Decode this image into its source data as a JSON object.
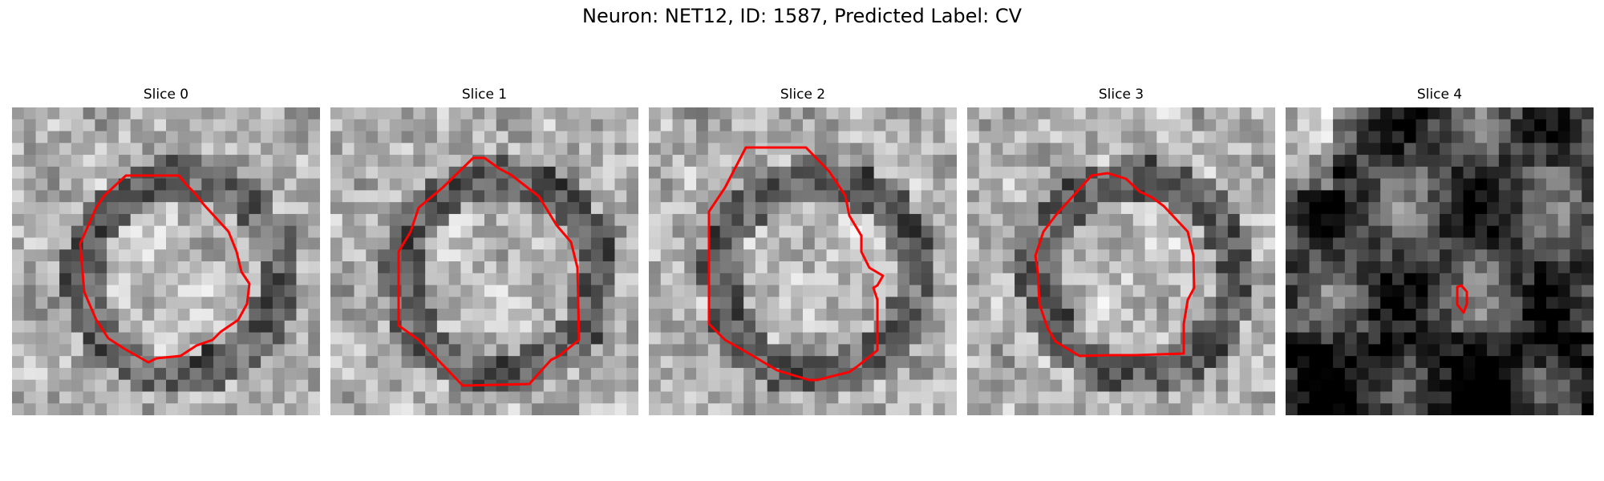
{
  "figure": {
    "title": "Neuron: NET12, ID: 1587, Predicted Label: CV"
  },
  "outline_color": "#ff0000",
  "panels": [
    {
      "title": "Slice 0",
      "seed": 11,
      "contrast": "mid",
      "ring_dark": true,
      "has_outline": true
    },
    {
      "title": "Slice 1",
      "seed": 23,
      "contrast": "mid",
      "ring_dark": true,
      "has_outline": true
    },
    {
      "title": "Slice 2",
      "seed": 37,
      "contrast": "mid",
      "ring_dark": true,
      "has_outline": true
    },
    {
      "title": "Slice 3",
      "seed": 41,
      "contrast": "mid",
      "ring_dark": true,
      "has_outline": true
    },
    {
      "title": "Slice 4",
      "seed": 59,
      "contrast": "dark",
      "ring_dark": false,
      "has_outline": true
    }
  ]
}
